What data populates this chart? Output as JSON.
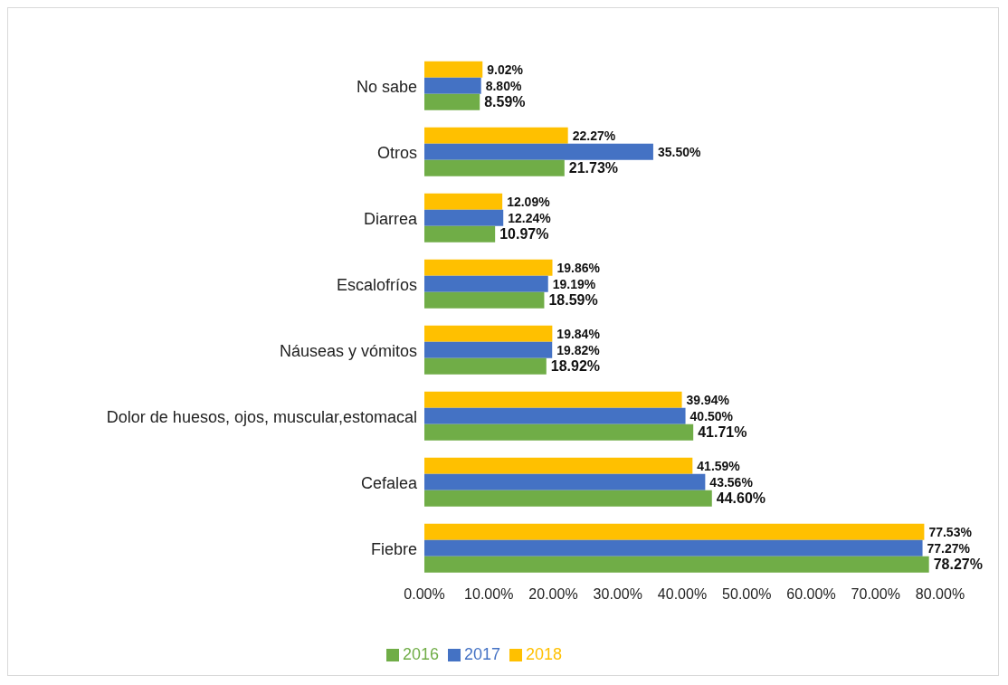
{
  "chart_data": {
    "type": "bar",
    "orientation": "horizontal",
    "categories": [
      "No sabe",
      "Otros",
      "Diarrea",
      "Escalofríos",
      "Náuseas y vómitos",
      "Dolor de huesos, ojos, muscular,estomacal",
      "Cefalea",
      "Fiebre"
    ],
    "series": [
      {
        "name": "2018",
        "color": "#ffc000",
        "values": [
          9.02,
          22.27,
          12.09,
          19.86,
          19.84,
          39.94,
          41.59,
          77.53
        ],
        "value_labels": [
          "9.02%",
          "22.27%",
          "12.09%",
          "19.86%",
          "19.84%",
          "39.94%",
          "41.59%",
          "77.53%"
        ]
      },
      {
        "name": "2017",
        "color": "#4472c4",
        "values": [
          8.8,
          35.5,
          12.24,
          19.19,
          19.82,
          40.5,
          43.56,
          77.27
        ],
        "value_labels": [
          "8.80%",
          "35.50%",
          "12.24%",
          "19.19%",
          "19.82%",
          "40.50%",
          "43.56%",
          "77.27%"
        ]
      },
      {
        "name": "2016",
        "color": "#70ad47",
        "values": [
          8.59,
          21.73,
          10.97,
          18.59,
          18.92,
          41.71,
          44.6,
          78.27
        ],
        "value_labels": [
          "8.59%",
          "21.73%",
          "10.97%",
          "18.59%",
          "18.92%",
          "41.71%",
          "44.60%",
          "78.27%"
        ]
      }
    ],
    "xlim": [
      0,
      80
    ],
    "xticks": [
      {
        "value": 0,
        "label": "0.00%"
      },
      {
        "value": 10,
        "label": "10.00%"
      },
      {
        "value": 20,
        "label": "20.00%"
      },
      {
        "value": 30,
        "label": "30.00%"
      },
      {
        "value": 40,
        "label": "40.00%"
      },
      {
        "value": 50,
        "label": "50.00%"
      },
      {
        "value": 60,
        "label": "60.00%"
      },
      {
        "value": 70,
        "label": "70.00%"
      },
      {
        "value": 80,
        "label": "80.00%"
      }
    ],
    "legend": "bottom"
  }
}
